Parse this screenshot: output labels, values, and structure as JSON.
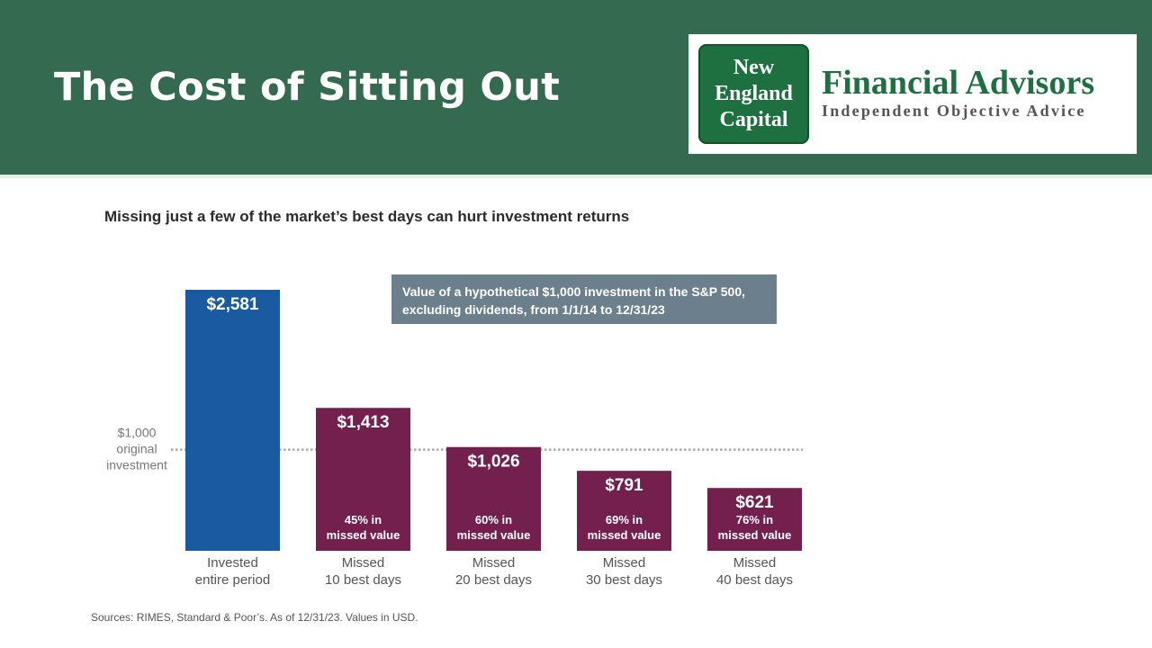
{
  "header": {
    "title": "The Cost of Sitting Out",
    "logo": {
      "badge_lines": [
        "New",
        "England",
        "Capital"
      ],
      "name": "Financial Advisors",
      "tagline": "Independent Objective Advice"
    }
  },
  "chart_data": {
    "type": "bar",
    "title": "Missing just a few of the market’s best days can hurt investment returns",
    "annotation_lines": [
      "Value of a hypothetical $1,000 investment in the S&P 500,",
      "excluding dividends, from 1/1/14 to 12/31/23"
    ],
    "categories": [
      [
        "Invested",
        "entire period"
      ],
      [
        "Missed",
        "10 best days"
      ],
      [
        "Missed",
        "20 best days"
      ],
      [
        "Missed",
        "30 best days"
      ],
      [
        "Missed",
        "40 best days"
      ]
    ],
    "values": [
      2581,
      1413,
      1026,
      791,
      621
    ],
    "value_labels": [
      "$2,581",
      "$1,413",
      "$1,026",
      "$791",
      "$621"
    ],
    "missed_value_labels": [
      null,
      [
        "45% in",
        "missed value"
      ],
      [
        "60% in",
        "missed value"
      ],
      [
        "69% in",
        "missed value"
      ],
      [
        "76% in",
        "missed value"
      ]
    ],
    "reference": {
      "value": 1000,
      "label_lines": [
        "$1,000",
        "original",
        "investment"
      ]
    },
    "colors": {
      "invested": "#1a5aa0",
      "missed": "#74204f",
      "annotation_bg": "#6b7f8c",
      "reference_line": "#aaaaaa"
    },
    "ylim": [
      0,
      2581
    ],
    "xlabel": "",
    "ylabel": ""
  },
  "footer": {
    "sources": "Sources: RIMES, Standard & Poor’s. As of 12/31/23. Values in USD."
  }
}
